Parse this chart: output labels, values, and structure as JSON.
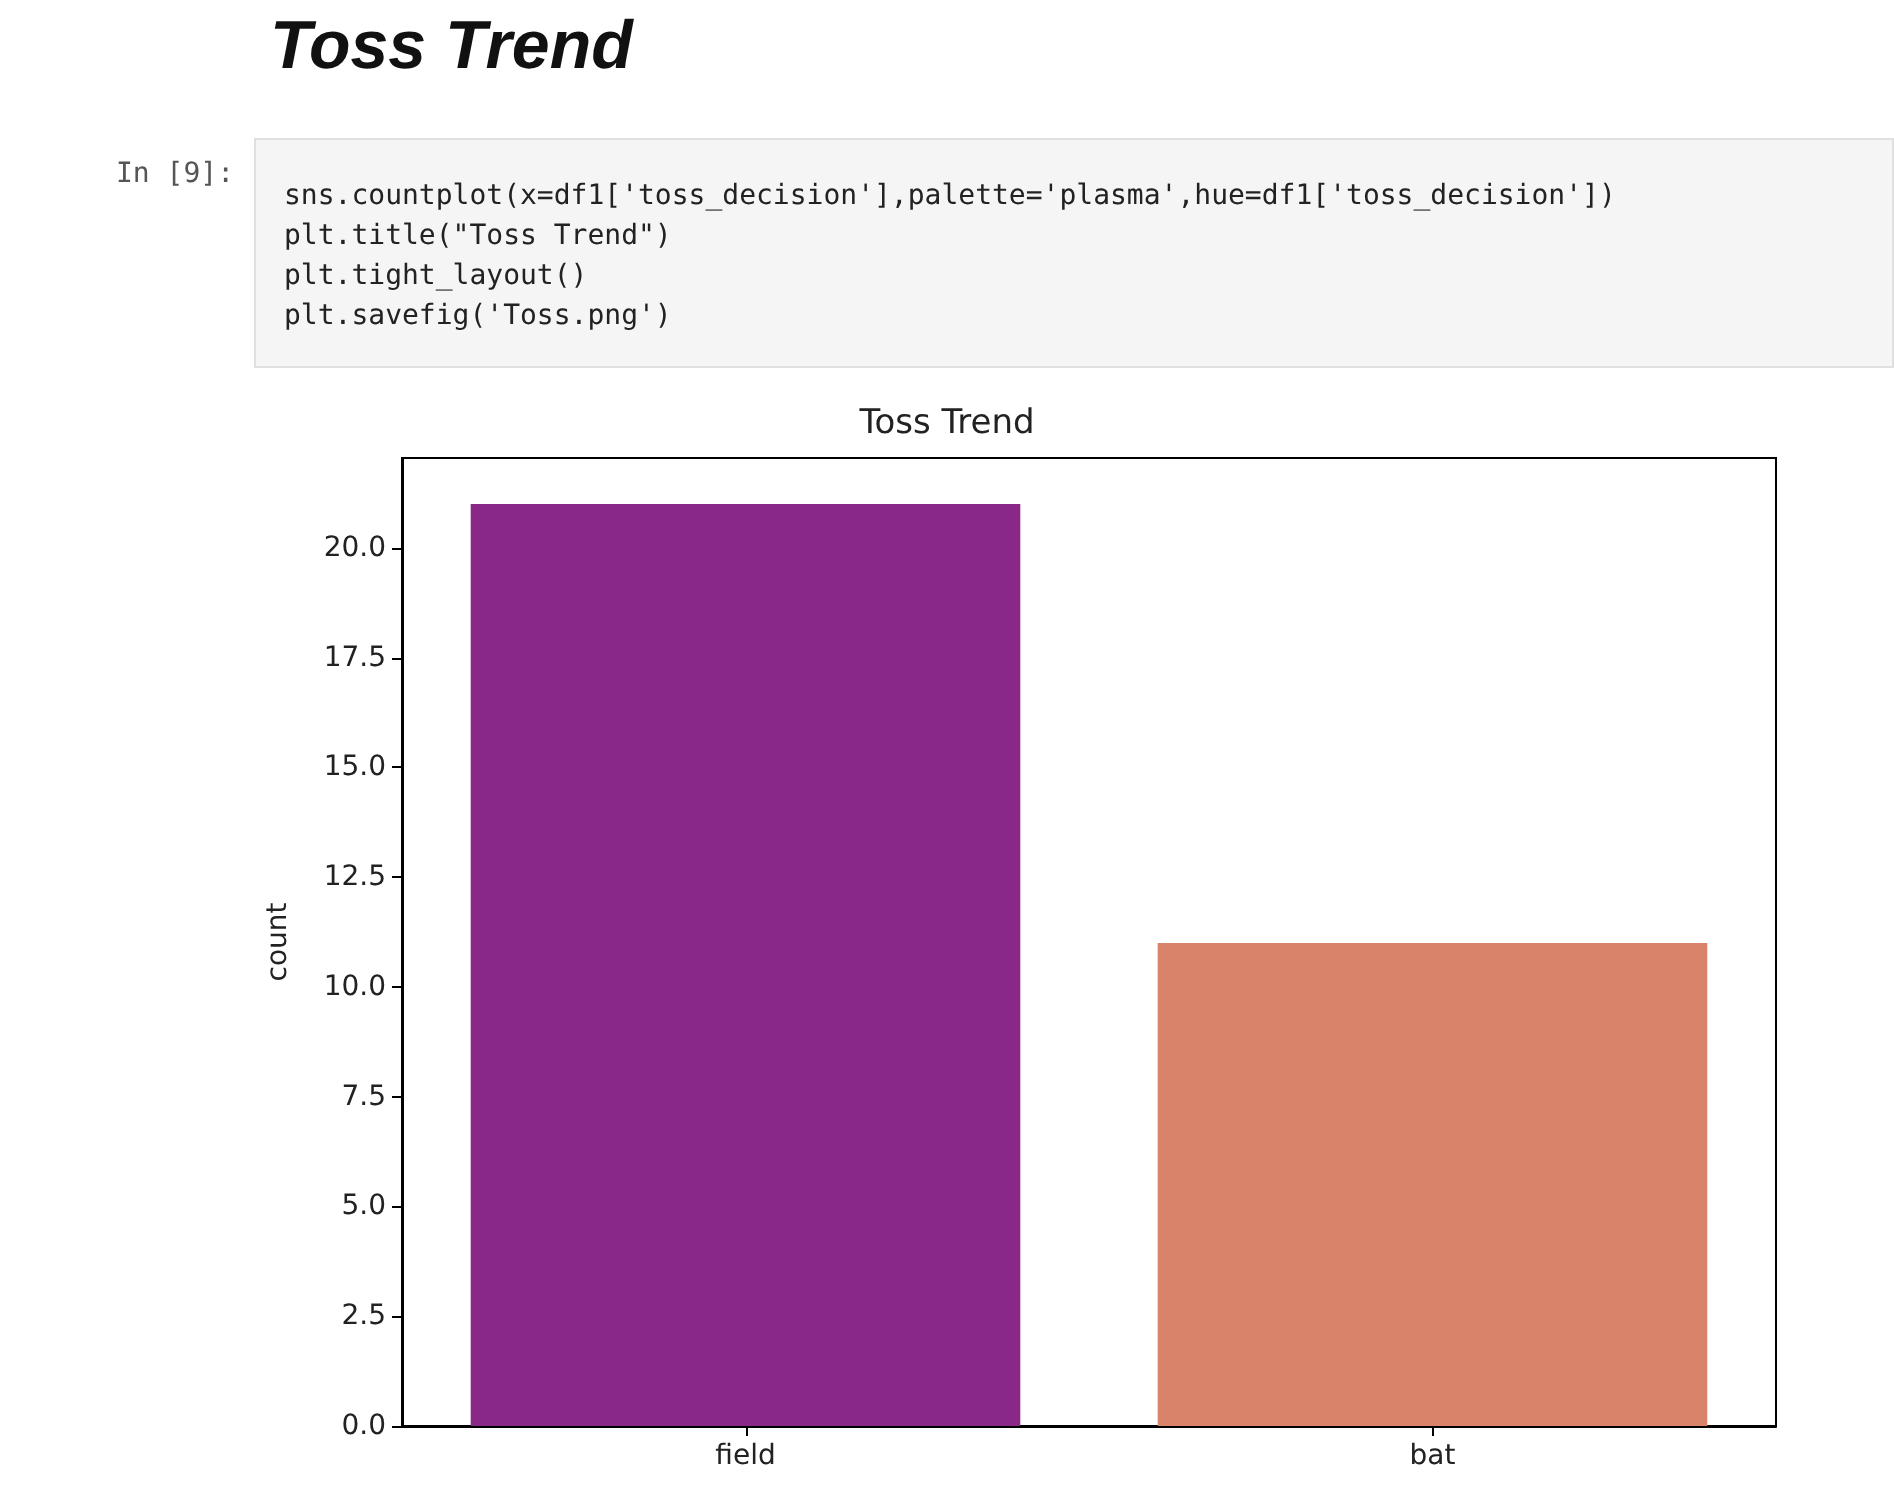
{
  "chart_data": {
    "type": "bar",
    "title": "Toss Trend",
    "subtitle": "Toss Trend",
    "ylabel": "count",
    "categories": [
      "field",
      "bat"
    ],
    "values": [
      21,
      11
    ],
    "colors": [
      "#8a2887",
      "#d9836a"
    ],
    "ylim": [
      0,
      22.05
    ],
    "yticks": [
      {
        "value": 0,
        "label": "0.0"
      },
      2.5,
      {
        "value": 5,
        "label": "5.0"
      },
      7.5,
      {
        "value": 10,
        "label": "10.0"
      },
      12.5,
      {
        "value": 15,
        "label": "15.0"
      },
      17.5,
      {
        "value": 20,
        "label": "20.0"
      }
    ],
    "grid": false,
    "annotations": [
      "In [9]:",
      "sns.countplot(x=df1['toss_decision'],palette='plasma',hue=df1['toss_decision'])",
      "plt.title(\"Toss Trend\")",
      "plt.tight_layout()",
      "plt.savefig('Toss.png')"
    ]
  }
}
